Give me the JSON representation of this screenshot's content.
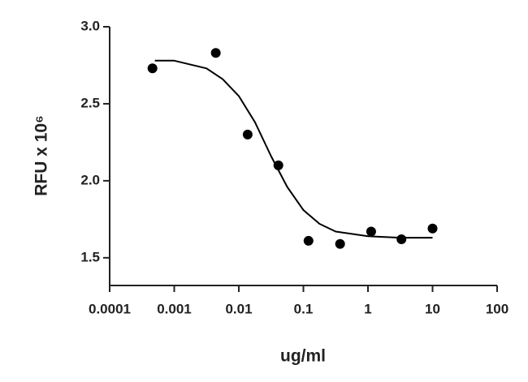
{
  "chart_data": {
    "type": "scatter",
    "ylabel": "RFU x 10⁶",
    "xlabel": "ug/ml",
    "xscale": "log",
    "xlim": [
      0.0001,
      100
    ],
    "xticks": [
      0.0001,
      0.001,
      0.01,
      0.1,
      1,
      10,
      100
    ],
    "ylim": [
      1.32,
      3.0
    ],
    "yticks": [
      1.5,
      {
        "value": 2,
        "label": "2.0"
      },
      2.5,
      {
        "value": 3,
        "label": "3.0"
      }
    ],
    "grid": false,
    "series": [
      {
        "type": "scatter",
        "color": "#000000",
        "x": [
          0.00046,
          0.0044,
          0.0137,
          0.041,
          0.12,
          0.37,
          1.12,
          3.3,
          10
        ],
        "values": [
          2.73,
          2.83,
          2.3,
          2.1,
          1.61,
          1.59,
          1.67,
          1.62,
          1.69
        ]
      },
      {
        "type": "line",
        "color": "#000000",
        "x": [
          0.0005,
          0.001,
          0.00316,
          0.00562,
          0.01,
          0.0178,
          0.0316,
          0.0562,
          0.1,
          0.178,
          0.316,
          1,
          3.16,
          10
        ],
        "values": [
          2.78,
          2.78,
          2.73,
          2.66,
          2.55,
          2.38,
          2.16,
          1.96,
          1.81,
          1.72,
          1.67,
          1.64,
          1.63,
          1.63
        ]
      }
    ]
  }
}
